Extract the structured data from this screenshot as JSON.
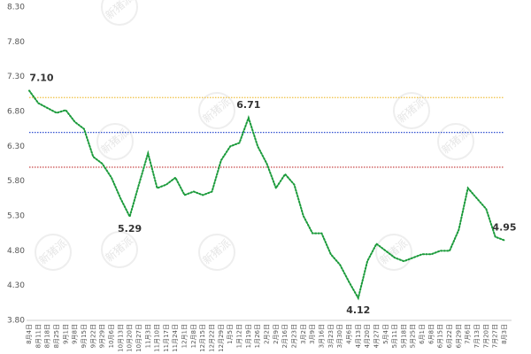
{
  "chart_data": {
    "type": "line",
    "categories": [
      "8月4日",
      "8月11日",
      "8月18日",
      "8月25日",
      "9月1日",
      "9月8日",
      "9月15日",
      "9月22日",
      "9月29日",
      "10月6日",
      "10月13日",
      "10月20日",
      "10月27日",
      "11月3日",
      "11月10日",
      "11月17日",
      "11月24日",
      "12月1日",
      "12月8日",
      "12月15日",
      "12月22日",
      "12月29日",
      "1月5日",
      "1月12日",
      "1月19日",
      "1月26日",
      "2月2日",
      "2月9日",
      "2月16日",
      "2月23日",
      "3月2日",
      "3月9日",
      "3月16日",
      "3月23日",
      "3月30日",
      "4月6日",
      "4月13日",
      "4月20日",
      "4月27日",
      "5月4日",
      "5月11日",
      "5月18日",
      "5月25日",
      "6月1日",
      "6月8日",
      "6月15日",
      "6月22日",
      "6月29日",
      "7月6日",
      "7月13日",
      "7月20日",
      "7月27日",
      "8月3日"
    ],
    "series": [
      {
        "color": "#1a9a3a",
        "values": [
          7.1,
          6.92,
          6.85,
          6.78,
          6.82,
          6.65,
          6.55,
          6.15,
          6.05,
          5.85,
          5.55,
          5.29,
          5.75,
          6.2,
          5.7,
          5.75,
          5.85,
          5.6,
          5.65,
          5.6,
          5.65,
          6.1,
          6.3,
          6.35,
          6.71,
          6.3,
          6.05,
          5.7,
          5.9,
          5.75,
          5.3,
          5.05,
          5.05,
          4.75,
          4.6,
          4.35,
          4.12,
          4.65,
          4.9,
          4.8,
          4.7,
          4.65,
          4.7,
          4.75,
          4.75,
          4.8,
          4.8,
          5.1,
          5.7,
          5.55,
          5.4,
          5.0,
          4.95
        ],
        "value_labels": [
          "7.10",
          null,
          null,
          null,
          null,
          null,
          null,
          null,
          null,
          null,
          null,
          "5.29",
          null,
          null,
          null,
          null,
          null,
          null,
          null,
          null,
          null,
          null,
          null,
          null,
          "6.71",
          null,
          null,
          null,
          null,
          null,
          null,
          null,
          null,
          null,
          null,
          null,
          "4.12",
          null,
          null,
          null,
          null,
          null,
          null,
          null,
          null,
          null,
          null,
          null,
          null,
          null,
          null,
          null,
          "4.95"
        ]
      }
    ],
    "reference_lines": [
      {
        "value": 7.0,
        "color": "#f0c040"
      },
      {
        "value": 6.5,
        "color": "#3050d0"
      },
      {
        "value": 6.0,
        "color": "#c03030"
      }
    ],
    "ylim": [
      3.8,
      8.3
    ],
    "yticks": [
      {
        "value": 3.8,
        "label": "3.80"
      },
      {
        "value": 4.3,
        "label": "4.30"
      },
      {
        "value": 4.8,
        "label": "4.80"
      },
      {
        "value": 5.3,
        "label": "5.30"
      },
      {
        "value": 5.8,
        "label": "5.80"
      },
      {
        "value": 6.3,
        "label": "6.30"
      },
      {
        "value": 6.8,
        "label": "6.80"
      },
      {
        "value": 7.3,
        "label": "7.30"
      },
      {
        "value": 7.8,
        "label": "7.80"
      },
      {
        "value": 8.3,
        "label": "8.30"
      }
    ],
    "watermark": "新猪派"
  }
}
